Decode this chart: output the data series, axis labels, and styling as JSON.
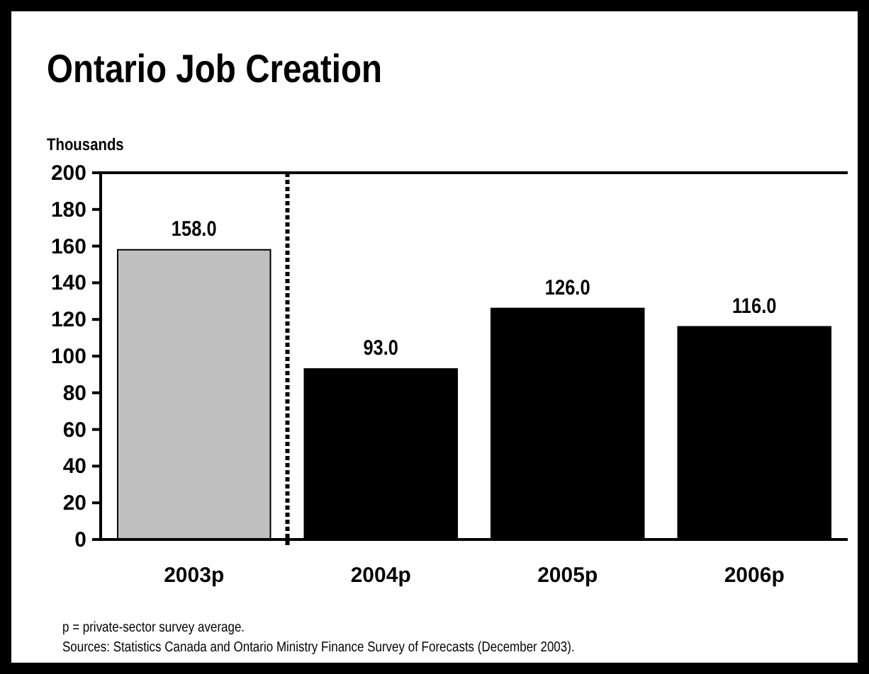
{
  "chart_data": {
    "type": "bar",
    "title": "Ontario Job Creation",
    "ylabel": "Thousands",
    "categories": [
      "2003p",
      "2004p",
      "2005p",
      "2006p"
    ],
    "values": [
      158.0,
      93.0,
      126.0,
      116.0
    ],
    "colors": [
      "#c0c0c0",
      "#000000",
      "#000000",
      "#000000"
    ],
    "value_labels": [
      "158.0",
      "93.0",
      "126.0",
      "116.0"
    ],
    "ylim": [
      0,
      200
    ],
    "yticks": [
      0,
      20,
      40,
      60,
      80,
      100,
      120,
      140,
      160,
      180,
      200
    ],
    "annotations": [
      "p = private-sector survey average.",
      "Sources:  Statistics Canada and Ontario Ministry Finance Survey of Forecasts (December 2003)."
    ]
  }
}
